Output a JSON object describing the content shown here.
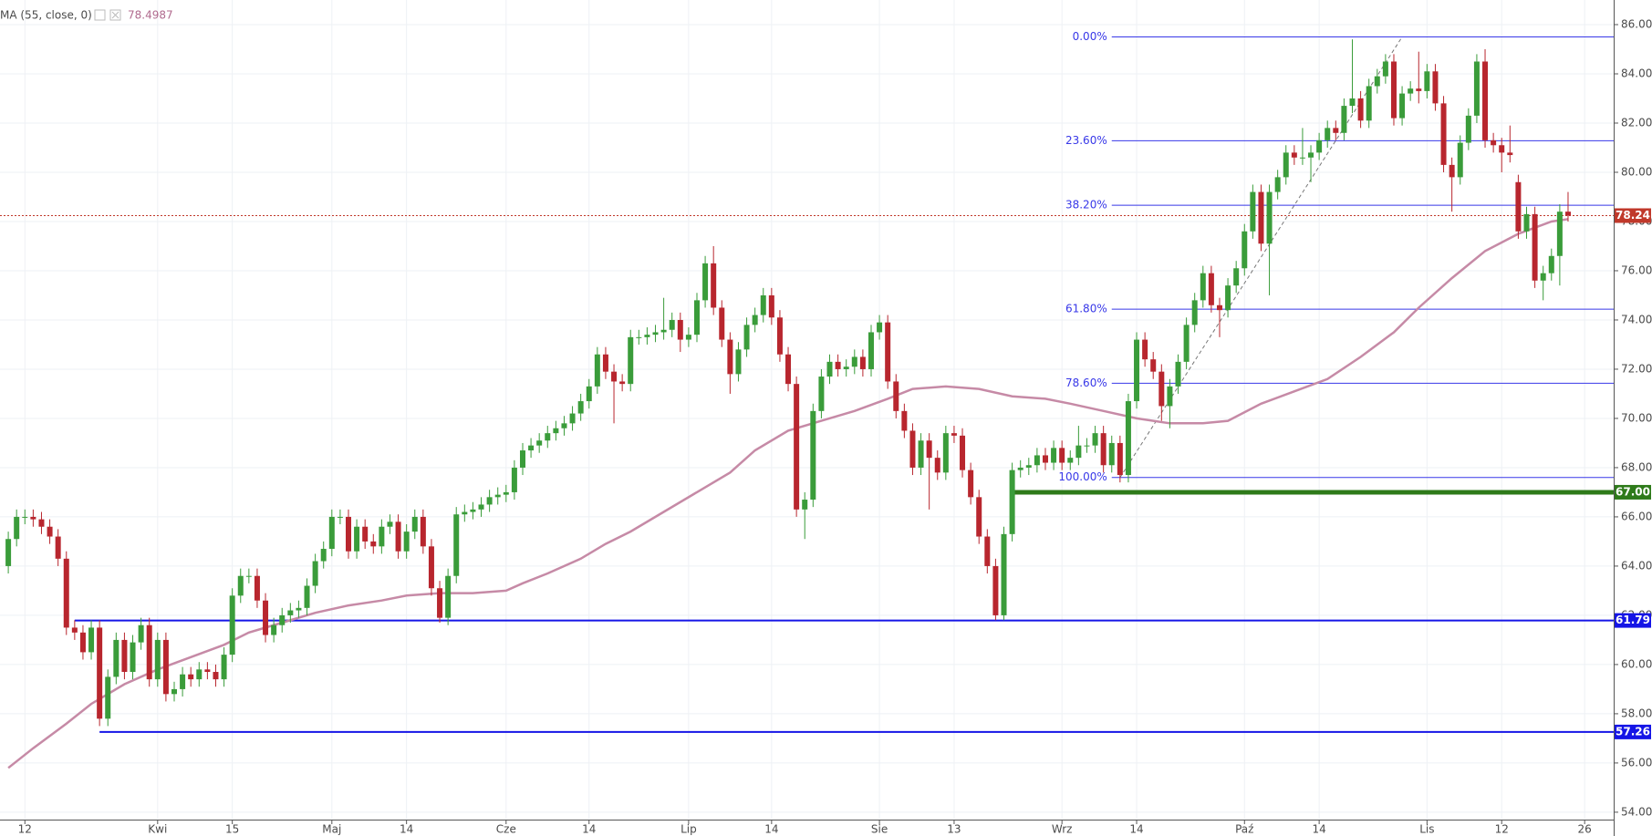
{
  "chart_data": {
    "type": "candlestick",
    "indicator": {
      "name": "MA (55, close, 0)",
      "value": 78.4987,
      "color": "#c68aa6",
      "x": [
        0,
        3,
        7,
        10,
        14,
        18,
        22,
        26,
        29,
        33,
        37,
        41,
        45,
        48,
        52,
        56,
        60,
        62,
        65,
        69,
        72,
        75,
        79,
        83,
        87,
        90,
        94,
        98,
        102,
        106,
        109,
        113,
        117,
        121,
        125,
        128,
        132,
        136,
        140,
        144,
        147,
        151,
        155,
        159,
        163,
        167,
        170,
        174,
        178,
        182,
        186,
        188
      ],
      "values": [
        55.8,
        56.6,
        57.6,
        58.4,
        59.2,
        59.8,
        60.3,
        60.8,
        61.3,
        61.7,
        62.1,
        62.4,
        62.6,
        62.8,
        62.9,
        62.9,
        63.0,
        63.3,
        63.7,
        64.3,
        64.9,
        65.4,
        66.2,
        67.0,
        67.8,
        68.7,
        69.5,
        69.9,
        70.3,
        70.8,
        71.2,
        71.3,
        71.2,
        70.9,
        70.8,
        70.6,
        70.3,
        70.0,
        69.8,
        69.8,
        69.9,
        70.6,
        71.1,
        71.6,
        72.5,
        73.5,
        74.5,
        75.7,
        76.8,
        77.5,
        78.0,
        78.1
      ]
    },
    "up_color": "#3a9c3a",
    "down_color": "#b8262e",
    "candles": [
      [
        64.0,
        65.4,
        63.7,
        65.1
      ],
      [
        65.1,
        66.3,
        64.8,
        66.0
      ],
      [
        66.0,
        66.3,
        65.7,
        66.0
      ],
      [
        66.0,
        66.3,
        65.6,
        65.9
      ],
      [
        65.9,
        66.2,
        65.3,
        65.6
      ],
      [
        65.6,
        65.9,
        64.9,
        65.2
      ],
      [
        65.2,
        65.5,
        64.0,
        64.3
      ],
      [
        64.3,
        64.6,
        61.2,
        61.5
      ],
      [
        61.5,
        61.8,
        61.0,
        61.3
      ],
      [
        61.3,
        61.6,
        60.2,
        60.5
      ],
      [
        60.5,
        61.8,
        60.2,
        61.5
      ],
      [
        61.5,
        61.8,
        57.5,
        57.8
      ],
      [
        57.8,
        59.8,
        57.5,
        59.5
      ],
      [
        59.5,
        61.3,
        59.2,
        61.0
      ],
      [
        61.0,
        61.3,
        59.4,
        59.7
      ],
      [
        59.7,
        61.2,
        59.4,
        60.9
      ],
      [
        60.9,
        61.9,
        60.6,
        61.6
      ],
      [
        61.6,
        61.9,
        59.1,
        59.4
      ],
      [
        59.4,
        61.3,
        59.1,
        61.0
      ],
      [
        61.0,
        61.3,
        58.5,
        58.8
      ],
      [
        58.8,
        59.3,
        58.5,
        59.0
      ],
      [
        59.0,
        59.9,
        58.7,
        59.6
      ],
      [
        59.6,
        59.9,
        59.1,
        59.4
      ],
      [
        59.4,
        60.1,
        59.1,
        59.8
      ],
      [
        59.8,
        60.1,
        59.4,
        59.7
      ],
      [
        59.7,
        60.0,
        59.1,
        59.4
      ],
      [
        59.4,
        60.7,
        59.1,
        60.4
      ],
      [
        60.4,
        63.1,
        60.1,
        62.8
      ],
      [
        62.8,
        63.9,
        62.5,
        63.6
      ],
      [
        63.6,
        63.9,
        63.3,
        63.6
      ],
      [
        63.6,
        63.9,
        62.3,
        62.6
      ],
      [
        62.6,
        62.9,
        60.9,
        61.2
      ],
      [
        61.2,
        61.9,
        60.9,
        61.6
      ],
      [
        61.6,
        62.3,
        61.3,
        62.0
      ],
      [
        62.0,
        62.5,
        61.7,
        62.2
      ],
      [
        62.2,
        62.6,
        61.9,
        62.3
      ],
      [
        62.3,
        63.5,
        62.0,
        63.2
      ],
      [
        63.2,
        64.5,
        62.9,
        64.2
      ],
      [
        64.2,
        65.0,
        63.9,
        64.7
      ],
      [
        64.7,
        66.3,
        64.4,
        66.0
      ],
      [
        66.0,
        66.3,
        65.7,
        66.0
      ],
      [
        66.0,
        66.3,
        64.3,
        64.6
      ],
      [
        64.6,
        65.9,
        64.3,
        65.6
      ],
      [
        65.6,
        65.9,
        64.7,
        65.0
      ],
      [
        65.0,
        65.3,
        64.5,
        64.8
      ],
      [
        64.8,
        65.9,
        64.5,
        65.6
      ],
      [
        65.6,
        66.1,
        65.3,
        65.8
      ],
      [
        65.8,
        66.1,
        64.3,
        64.6
      ],
      [
        64.6,
        65.7,
        64.3,
        65.4
      ],
      [
        65.4,
        66.3,
        65.1,
        66.0
      ],
      [
        66.0,
        66.3,
        64.5,
        64.8
      ],
      [
        64.8,
        65.1,
        62.8,
        63.1
      ],
      [
        63.1,
        63.4,
        61.7,
        61.9
      ],
      [
        61.9,
        63.9,
        61.6,
        63.6
      ],
      [
        63.6,
        66.4,
        63.3,
        66.1
      ],
      [
        66.1,
        66.5,
        65.8,
        66.2
      ],
      [
        66.2,
        66.6,
        65.9,
        66.3
      ],
      [
        66.3,
        66.8,
        66.0,
        66.5
      ],
      [
        66.5,
        67.1,
        66.2,
        66.8
      ],
      [
        66.8,
        67.2,
        66.5,
        66.9
      ],
      [
        66.9,
        67.3,
        66.6,
        67.0
      ],
      [
        67.0,
        68.3,
        66.7,
        68.0
      ],
      [
        68.0,
        69.0,
        67.7,
        68.7
      ],
      [
        68.7,
        69.2,
        68.4,
        68.9
      ],
      [
        68.9,
        69.4,
        68.6,
        69.1
      ],
      [
        69.1,
        69.7,
        68.8,
        69.4
      ],
      [
        69.4,
        69.9,
        69.1,
        69.6
      ],
      [
        69.6,
        70.1,
        69.3,
        69.8
      ],
      [
        69.8,
        70.5,
        69.5,
        70.2
      ],
      [
        70.2,
        71.0,
        69.9,
        70.7
      ],
      [
        70.7,
        71.6,
        70.4,
        71.3
      ],
      [
        71.3,
        72.9,
        71.0,
        72.6
      ],
      [
        72.6,
        72.9,
        71.6,
        71.9
      ],
      [
        71.9,
        72.2,
        69.8,
        71.5
      ],
      [
        71.5,
        71.8,
        71.1,
        71.4
      ],
      [
        71.4,
        73.6,
        71.1,
        73.3
      ],
      [
        73.3,
        73.6,
        73.0,
        73.3
      ],
      [
        73.3,
        73.7,
        73.0,
        73.4
      ],
      [
        73.4,
        73.8,
        73.1,
        73.5
      ],
      [
        73.5,
        74.9,
        73.2,
        73.6
      ],
      [
        73.6,
        74.3,
        73.3,
        74.0
      ],
      [
        74.0,
        74.3,
        72.7,
        73.2
      ],
      [
        73.2,
        73.7,
        72.9,
        73.4
      ],
      [
        73.4,
        75.1,
        73.1,
        74.8
      ],
      [
        74.8,
        76.6,
        74.5,
        76.3
      ],
      [
        76.3,
        77.0,
        74.2,
        74.5
      ],
      [
        74.5,
        74.8,
        72.9,
        73.2
      ],
      [
        73.2,
        73.5,
        71.0,
        71.8
      ],
      [
        71.8,
        73.1,
        71.5,
        72.8
      ],
      [
        72.8,
        74.1,
        72.5,
        73.8
      ],
      [
        73.8,
        74.5,
        73.5,
        74.2
      ],
      [
        74.2,
        75.3,
        73.9,
        75.0
      ],
      [
        75.0,
        75.3,
        73.8,
        74.1
      ],
      [
        74.1,
        74.4,
        72.3,
        72.6
      ],
      [
        72.6,
        72.9,
        71.1,
        71.4
      ],
      [
        71.4,
        71.7,
        66.0,
        66.3
      ],
      [
        66.3,
        67.0,
        65.1,
        66.7
      ],
      [
        66.7,
        70.6,
        66.4,
        70.3
      ],
      [
        70.3,
        72.0,
        70.0,
        71.7
      ],
      [
        71.7,
        72.6,
        71.4,
        72.3
      ],
      [
        72.3,
        72.6,
        71.7,
        72.0
      ],
      [
        72.0,
        72.4,
        71.7,
        72.1
      ],
      [
        72.1,
        72.8,
        71.8,
        72.5
      ],
      [
        72.5,
        72.8,
        71.7,
        72.0
      ],
      [
        72.0,
        73.8,
        71.7,
        73.5
      ],
      [
        73.5,
        74.2,
        73.2,
        73.9
      ],
      [
        73.9,
        74.2,
        71.2,
        71.5
      ],
      [
        71.5,
        71.8,
        70.0,
        70.3
      ],
      [
        70.3,
        70.6,
        69.2,
        69.5
      ],
      [
        69.5,
        69.8,
        67.7,
        68.0
      ],
      [
        68.0,
        69.4,
        67.7,
        69.1
      ],
      [
        69.1,
        69.4,
        66.3,
        68.4
      ],
      [
        68.4,
        68.7,
        67.5,
        67.8
      ],
      [
        67.8,
        69.7,
        67.5,
        69.4
      ],
      [
        69.4,
        69.7,
        69.0,
        69.3
      ],
      [
        69.3,
        69.6,
        67.6,
        67.9
      ],
      [
        67.9,
        68.2,
        66.5,
        66.8
      ],
      [
        66.8,
        67.1,
        64.9,
        65.2
      ],
      [
        65.2,
        65.5,
        63.7,
        64.0
      ],
      [
        64.0,
        64.3,
        61.8,
        62.0
      ],
      [
        62.0,
        65.6,
        61.8,
        65.3
      ],
      [
        65.3,
        68.2,
        65.0,
        67.9
      ],
      [
        67.9,
        68.3,
        67.6,
        68.0
      ],
      [
        68.0,
        68.4,
        67.7,
        68.1
      ],
      [
        68.1,
        68.8,
        67.8,
        68.5
      ],
      [
        68.5,
        68.8,
        67.9,
        68.2
      ],
      [
        68.2,
        69.1,
        67.9,
        68.8
      ],
      [
        68.8,
        69.1,
        67.9,
        68.2
      ],
      [
        68.2,
        68.7,
        67.9,
        68.4
      ],
      [
        68.4,
        69.7,
        68.1,
        68.9
      ],
      [
        68.9,
        69.2,
        68.6,
        68.9
      ],
      [
        68.9,
        69.7,
        68.6,
        69.4
      ],
      [
        69.4,
        69.7,
        67.8,
        68.1
      ],
      [
        68.1,
        69.3,
        67.8,
        69.0
      ],
      [
        69.0,
        69.3,
        67.4,
        67.7
      ],
      [
        67.7,
        71.0,
        67.4,
        70.7
      ],
      [
        70.7,
        73.5,
        70.4,
        73.2
      ],
      [
        73.2,
        73.5,
        72.1,
        72.4
      ],
      [
        72.4,
        72.7,
        71.6,
        71.9
      ],
      [
        71.9,
        72.2,
        69.9,
        70.5
      ],
      [
        70.5,
        71.6,
        69.6,
        71.3
      ],
      [
        71.3,
        72.6,
        71.0,
        72.3
      ],
      [
        72.3,
        74.1,
        72.0,
        73.8
      ],
      [
        73.8,
        75.1,
        73.5,
        74.8
      ],
      [
        74.8,
        76.2,
        74.5,
        75.9
      ],
      [
        75.9,
        76.2,
        74.3,
        74.6
      ],
      [
        74.6,
        74.9,
        73.3,
        74.4
      ],
      [
        74.4,
        75.7,
        74.1,
        75.4
      ],
      [
        75.4,
        76.4,
        75.1,
        76.1
      ],
      [
        76.1,
        77.9,
        75.8,
        77.6
      ],
      [
        77.6,
        79.5,
        77.3,
        79.2
      ],
      [
        79.2,
        79.5,
        76.8,
        77.1
      ],
      [
        77.1,
        79.5,
        75.0,
        79.2
      ],
      [
        79.2,
        80.1,
        78.9,
        79.8
      ],
      [
        79.8,
        81.1,
        79.5,
        80.8
      ],
      [
        80.8,
        81.1,
        80.3,
        80.6
      ],
      [
        80.6,
        81.8,
        80.3,
        80.6
      ],
      [
        80.6,
        81.1,
        79.6,
        80.8
      ],
      [
        80.8,
        81.6,
        80.5,
        81.3
      ],
      [
        81.3,
        82.1,
        81.0,
        81.8
      ],
      [
        81.8,
        82.1,
        81.3,
        81.6
      ],
      [
        81.6,
        83.0,
        81.3,
        82.7
      ],
      [
        82.7,
        85.4,
        82.4,
        83.0
      ],
      [
        83.0,
        83.3,
        81.8,
        82.1
      ],
      [
        82.1,
        83.8,
        81.8,
        83.5
      ],
      [
        83.5,
        84.2,
        83.2,
        83.9
      ],
      [
        83.9,
        84.8,
        83.6,
        84.5
      ],
      [
        84.5,
        84.8,
        81.9,
        82.2
      ],
      [
        82.2,
        83.5,
        81.9,
        83.2
      ],
      [
        83.2,
        83.7,
        82.9,
        83.4
      ],
      [
        83.4,
        84.9,
        82.8,
        83.3
      ],
      [
        83.3,
        84.4,
        83.0,
        84.1
      ],
      [
        84.1,
        84.4,
        82.5,
        82.8
      ],
      [
        82.8,
        83.1,
        80.0,
        80.3
      ],
      [
        80.3,
        80.6,
        78.4,
        79.8
      ],
      [
        79.8,
        81.5,
        79.5,
        81.2
      ],
      [
        81.2,
        82.6,
        80.9,
        82.3
      ],
      [
        82.3,
        84.8,
        82.0,
        84.5
      ],
      [
        84.5,
        85.0,
        81.0,
        81.3
      ],
      [
        81.3,
        81.6,
        80.8,
        81.1
      ],
      [
        81.1,
        81.4,
        80.0,
        80.8
      ],
      [
        80.8,
        81.9,
        80.4,
        80.7
      ],
      [
        79.6,
        79.9,
        77.3,
        77.6
      ],
      [
        77.6,
        78.6,
        77.3,
        78.3
      ],
      [
        78.3,
        78.6,
        75.3,
        75.6
      ],
      [
        75.6,
        76.2,
        74.8,
        75.9
      ],
      [
        75.9,
        76.9,
        75.6,
        76.6
      ],
      [
        76.6,
        78.7,
        75.4,
        78.4
      ],
      [
        78.4,
        79.2,
        78.0,
        78.24
      ]
    ],
    "fib": {
      "color": "#3838e8",
      "from": 133,
      "levels": [
        {
          "label": "0.00%",
          "price": 85.5
        },
        {
          "label": "23.60%",
          "price": 81.28
        },
        {
          "label": "38.20%",
          "price": 78.66
        },
        {
          "label": "61.80%",
          "price": 74.44
        },
        {
          "label": "78.60%",
          "price": 71.43
        },
        {
          "label": "100.00%",
          "price": 67.6
        }
      ],
      "trend": {
        "from": [
          134,
          67.6
        ],
        "to": [
          168,
          85.5
        ]
      }
    },
    "levels": [
      {
        "price": {
          "value": 61.79,
          "label": "61.79"
        },
        "from": 8,
        "color": "#1515e6",
        "width": 2
      },
      {
        "price": {
          "value": 57.26,
          "label": "57.26"
        },
        "from": 11,
        "color": "#1515e6",
        "width": 2
      },
      {
        "price": {
          "value": 67,
          "label": "67.00"
        },
        "from": 121,
        "color": "#2e7a1a",
        "width": 5
      },
      {
        "price": {
          "value": 78.24,
          "label": "78.24"
        },
        "from": -1,
        "color": "#c0392b",
        "width": 1,
        "dotted": true
      }
    ],
    "xlim": [
      -1,
      193.5
    ],
    "ylim": [
      53.7,
      87.0
    ],
    "xticks": [
      {
        "value": 2,
        "label": "12"
      },
      {
        "value": 18,
        "label": "Kwi"
      },
      {
        "value": 27,
        "label": "15"
      },
      {
        "value": 39,
        "label": "Maj"
      },
      {
        "value": 48,
        "label": "14"
      },
      {
        "value": 60,
        "label": "Cze"
      },
      {
        "value": 70,
        "label": "14"
      },
      {
        "value": 82,
        "label": "Lip"
      },
      {
        "value": 92,
        "label": "14"
      },
      {
        "value": 105,
        "label": "Sie"
      },
      {
        "value": 114,
        "label": "13"
      },
      {
        "value": 127,
        "label": "Wrz"
      },
      {
        "value": 136,
        "label": "14"
      },
      {
        "value": 149,
        "label": "Paź"
      },
      {
        "value": 158,
        "label": "14"
      },
      {
        "value": 171,
        "label": "Lis"
      },
      {
        "value": 180,
        "label": "12"
      },
      {
        "value": 190,
        "label": "26"
      }
    ],
    "yticks": [
      {
        "value": 54,
        "label": "54.00"
      },
      {
        "value": 56,
        "label": "56.00"
      },
      {
        "value": 58,
        "label": "58.00"
      },
      {
        "value": 60,
        "label": "60.00"
      },
      {
        "value": 62,
        "label": "62.00"
      },
      {
        "value": 64,
        "label": "64.00"
      },
      {
        "value": 66,
        "label": "66.00"
      },
      {
        "value": 68,
        "label": "68.00"
      },
      {
        "value": 70,
        "label": "70.00"
      },
      {
        "value": 72,
        "label": "72.00"
      },
      {
        "value": 74,
        "label": "74.00"
      },
      {
        "value": 76,
        "label": "76.00"
      },
      {
        "value": 78,
        "label": "78.00"
      },
      {
        "value": 80,
        "label": "80.00"
      },
      {
        "value": 82,
        "label": "82.00"
      },
      {
        "value": 84,
        "label": "84.00"
      },
      {
        "value": 86,
        "label": "86.00"
      }
    ],
    "grid": true
  }
}
